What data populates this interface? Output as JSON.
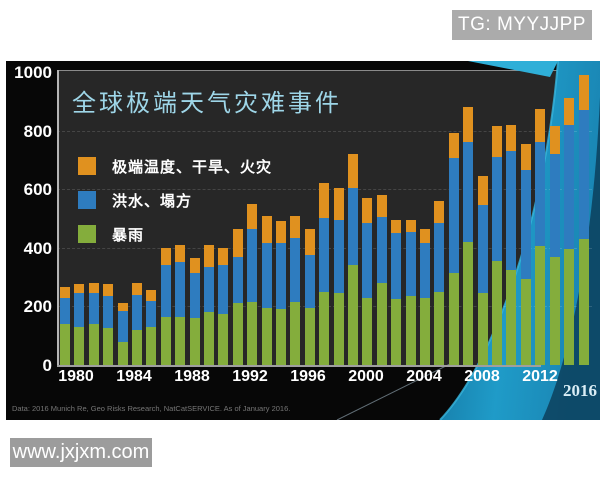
{
  "watermarks": {
    "top_right": "TG: MYYJJPP",
    "bottom_left": "www.jxjxm.com"
  },
  "source_note": "Data: 2016 Munich Re, Geo Risks Research, NatCatSERVICE. As of January 2016.",
  "corner_year_label": "2016",
  "colors": {
    "rain_green": "#84ad3c",
    "flood_blue": "#2e7cbf",
    "heat_orange": "#e0911f",
    "title_blue": "#9ed6e8",
    "plot_bg": "#272727",
    "swoosh_teal": "#1f9bc8",
    "swoosh_navy": "#0c3f5c"
  },
  "chart_data": {
    "type": "bar",
    "stacked": true,
    "title": "全球极端天气灾难事件",
    "ylim": [
      0,
      1000
    ],
    "yticks": [
      0,
      200,
      400,
      600,
      800,
      1000
    ],
    "grid": "dashed-horizontal",
    "legend_position": "upper-left",
    "categories": [
      1980,
      1981,
      1982,
      1983,
      1984,
      1985,
      1986,
      1987,
      1988,
      1989,
      1990,
      1991,
      1992,
      1993,
      1994,
      1995,
      1996,
      1997,
      1998,
      1999,
      2000,
      2001,
      2002,
      2003,
      2004,
      2005,
      2006,
      2007,
      2008,
      2009,
      2010,
      2011,
      2012,
      2013,
      2014,
      2015,
      2016
    ],
    "xticks_shown": [
      "1980",
      "1984",
      "1988",
      "1992",
      "1996",
      "2000",
      "2004",
      "2008",
      "2012",
      "2016"
    ],
    "series": [
      {
        "name": "暴雨",
        "color": "#84ad3c",
        "values": [
          140,
          130,
          140,
          125,
          80,
          120,
          130,
          165,
          165,
          160,
          180,
          175,
          210,
          215,
          195,
          190,
          215,
          195,
          250,
          245,
          340,
          230,
          280,
          225,
          235,
          230,
          250,
          315,
          420,
          245,
          355,
          325,
          295,
          405,
          370,
          395,
          430
        ]
      },
      {
        "name": "洪水、塌方",
        "color": "#2e7cbf",
        "values": [
          90,
          115,
          105,
          110,
          105,
          120,
          90,
          175,
          185,
          155,
          155,
          165,
          160,
          250,
          220,
          225,
          220,
          180,
          250,
          250,
          265,
          255,
          225,
          225,
          220,
          185,
          235,
          390,
          340,
          300,
          355,
          405,
          370,
          355,
          350,
          425,
          440
        ]
      },
      {
        "name": "极端温度、干旱、火灾",
        "color": "#e0911f",
        "values": [
          35,
          30,
          35,
          40,
          25,
          40,
          35,
          60,
          60,
          50,
          75,
          60,
          95,
          85,
          95,
          75,
          75,
          90,
          120,
          110,
          115,
          85,
          75,
          45,
          40,
          50,
          75,
          88,
          120,
          100,
          105,
          90,
          90,
          115,
          95,
          90,
          120
        ]
      }
    ]
  }
}
